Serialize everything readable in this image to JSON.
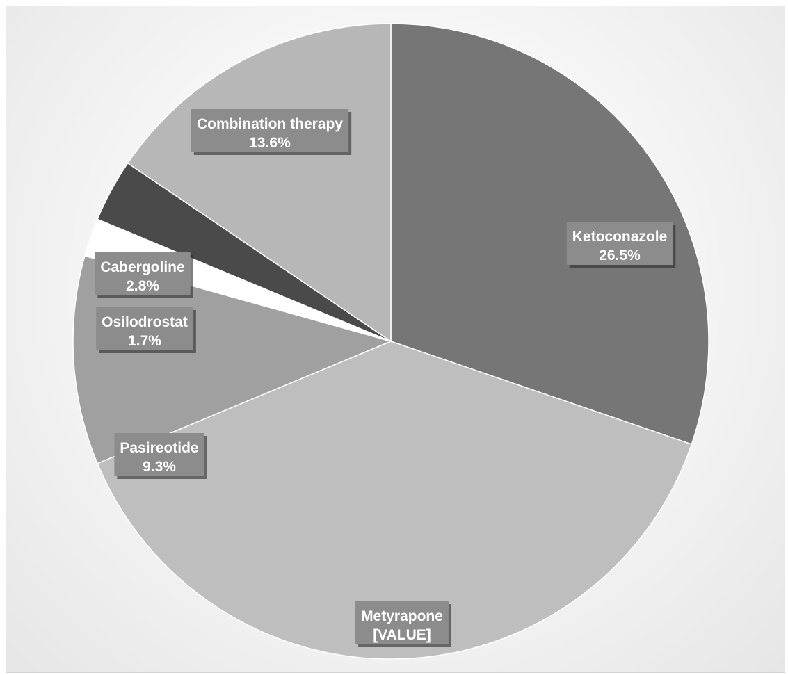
{
  "chart_data": {
    "type": "pie",
    "title": "",
    "start_angle_deg": 0,
    "direction": "clockwise",
    "slices": [
      {
        "label": "Ketoconazole",
        "value_text": "26.5%",
        "value": 26.5,
        "color": "#767676"
      },
      {
        "label": "Metyrapone",
        "value_text": "[VALUE]",
        "value": 33.7,
        "color": "#bebebe"
      },
      {
        "label": "Pasireotide",
        "value_text": "9.3%",
        "value": 9.3,
        "color": "#a0a0a0"
      },
      {
        "label": "Osilodrostat",
        "value_text": "1.7%",
        "value": 1.7,
        "color": "#ffffff"
      },
      {
        "label": "Cabergoline",
        "value_text": "2.8%",
        "value": 2.8,
        "color": "#4a4a4a"
      },
      {
        "label": "Combination therapy",
        "value_text": "13.6%",
        "value": 13.6,
        "color": "#b7b7b7"
      }
    ]
  }
}
